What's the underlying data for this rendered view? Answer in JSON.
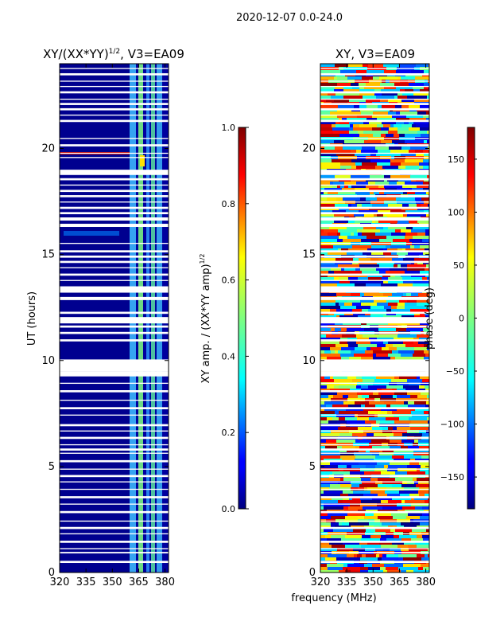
{
  "figure": {
    "suptitle": "2020-12-07 0.0-24.0",
    "shared_xlabel": "frequency (MHz)"
  },
  "chart_data": [
    {
      "type": "heatmap",
      "title": "XY/(XX*YY)",
      "title_sup": "1/2",
      "title_suffix": ", V3=EA09",
      "xlabel": "",
      "ylabel": "UT (hours)",
      "xlim": [
        320,
        382
      ],
      "ylim": [
        0,
        24
      ],
      "xticks": [
        320,
        335,
        350,
        365,
        380
      ],
      "yticks": [
        0,
        5,
        10,
        15,
        20
      ],
      "colormap": "jet",
      "colorbar": {
        "label": "XY amp. / (XX*YY amp)",
        "label_sup": "1/2",
        "range": [
          0.0,
          1.0
        ],
        "ticks": [
          0.0,
          0.2,
          0.4,
          0.6,
          0.8,
          1.0
        ],
        "tick_labels": [
          "0.0",
          "0.2",
          "0.4",
          "0.6",
          "0.8",
          "1.0"
        ]
      },
      "flagged_ut_ranges": [
        [
          0.45,
          0.55
        ],
        [
          0.9,
          0.97
        ],
        [
          1.1,
          1.15
        ],
        [
          1.4,
          1.5
        ],
        [
          1.8,
          1.85
        ],
        [
          2.05,
          2.15
        ],
        [
          2.4,
          2.45
        ],
        [
          2.8,
          2.9
        ],
        [
          3.2,
          3.25
        ],
        [
          3.5,
          3.6
        ],
        [
          3.9,
          3.95
        ],
        [
          4.25,
          4.3
        ],
        [
          4.5,
          4.6
        ],
        [
          4.85,
          4.9
        ],
        [
          5.2,
          5.3
        ],
        [
          5.6,
          5.65
        ],
        [
          5.75,
          5.85
        ],
        [
          6.0,
          6.05
        ],
        [
          6.3,
          6.4
        ],
        [
          6.65,
          6.7
        ],
        [
          6.9,
          7.0
        ],
        [
          7.4,
          7.45
        ],
        [
          7.7,
          7.8
        ],
        [
          8.1,
          8.15
        ],
        [
          8.5,
          8.6
        ],
        [
          8.9,
          8.95
        ],
        [
          9.25,
          9.5
        ],
        [
          9.5,
          10.05
        ],
        [
          10.9,
          11.0
        ],
        [
          11.25,
          11.35
        ],
        [
          11.55,
          11.65
        ],
        [
          11.75,
          12.05
        ],
        [
          12.2,
          12.3
        ],
        [
          12.85,
          13.0
        ],
        [
          13.2,
          13.5
        ],
        [
          13.75,
          13.8
        ],
        [
          14.0,
          14.1
        ],
        [
          14.35,
          14.4
        ],
        [
          14.6,
          14.7
        ],
        [
          14.85,
          14.95
        ],
        [
          15.1,
          15.2
        ],
        [
          15.5,
          15.55
        ],
        [
          16.3,
          16.45
        ],
        [
          16.6,
          16.75
        ],
        [
          16.9,
          17.0
        ],
        [
          17.15,
          17.25
        ],
        [
          17.45,
          17.5
        ],
        [
          17.7,
          17.8
        ],
        [
          17.95,
          18.05
        ],
        [
          18.25,
          18.3
        ],
        [
          18.5,
          18.6
        ],
        [
          18.75,
          19.0
        ],
        [
          19.55,
          19.6
        ],
        [
          19.75,
          19.8
        ],
        [
          20.1,
          20.2
        ],
        [
          20.45,
          20.5
        ],
        [
          21.25,
          21.35
        ],
        [
          21.55,
          21.6
        ],
        [
          21.8,
          21.9
        ],
        [
          22.05,
          22.15
        ],
        [
          22.3,
          22.35
        ],
        [
          22.6,
          22.7
        ],
        [
          22.9,
          22.95
        ],
        [
          23.15,
          23.2
        ],
        [
          23.45,
          23.55
        ],
        [
          23.75,
          23.8
        ]
      ]
    },
    {
      "type": "heatmap",
      "title": "XY, V3=EA09",
      "xlabel": "frequency (MHz)",
      "ylabel": "",
      "xlim": [
        320,
        382
      ],
      "ylim": [
        0,
        24
      ],
      "xticks": [
        320,
        335,
        350,
        365,
        380
      ],
      "yticks": [
        0,
        5,
        10,
        15,
        20
      ],
      "colormap": "jet",
      "colorbar": {
        "label": "phase (deg)",
        "range": [
          -180,
          180
        ],
        "ticks": [
          -150,
          -100,
          -50,
          0,
          50,
          100,
          150
        ],
        "tick_labels": [
          "−150",
          "−100",
          "−50",
          "0",
          "50",
          "100",
          "150"
        ]
      },
      "flagged_ut_ranges": [
        [
          0.45,
          0.55
        ],
        [
          0.9,
          0.97
        ],
        [
          1.1,
          1.15
        ],
        [
          1.4,
          1.5
        ],
        [
          1.8,
          1.85
        ],
        [
          2.05,
          2.15
        ],
        [
          2.4,
          2.45
        ],
        [
          2.8,
          2.9
        ],
        [
          3.2,
          3.25
        ],
        [
          3.5,
          3.6
        ],
        [
          3.9,
          3.95
        ],
        [
          4.25,
          4.3
        ],
        [
          4.5,
          4.6
        ],
        [
          4.85,
          4.9
        ],
        [
          5.2,
          5.3
        ],
        [
          5.6,
          5.65
        ],
        [
          5.75,
          5.85
        ],
        [
          6.0,
          6.05
        ],
        [
          6.3,
          6.4
        ],
        [
          6.65,
          6.7
        ],
        [
          6.9,
          7.0
        ],
        [
          7.4,
          7.45
        ],
        [
          7.7,
          7.8
        ],
        [
          8.1,
          8.15
        ],
        [
          8.5,
          8.6
        ],
        [
          8.9,
          8.95
        ],
        [
          9.25,
          9.5
        ],
        [
          9.5,
          10.05
        ],
        [
          10.9,
          11.0
        ],
        [
          11.25,
          11.35
        ],
        [
          11.55,
          11.65
        ],
        [
          11.75,
          12.05
        ],
        [
          12.2,
          12.3
        ],
        [
          12.85,
          13.0
        ],
        [
          13.2,
          13.5
        ],
        [
          13.75,
          13.8
        ],
        [
          14.0,
          14.1
        ],
        [
          14.35,
          14.4
        ],
        [
          14.6,
          14.7
        ],
        [
          14.85,
          14.95
        ],
        [
          15.1,
          15.2
        ],
        [
          15.5,
          15.55
        ],
        [
          16.3,
          16.45
        ],
        [
          16.6,
          16.75
        ],
        [
          16.9,
          17.0
        ],
        [
          17.15,
          17.25
        ],
        [
          17.45,
          17.5
        ],
        [
          17.7,
          17.8
        ],
        [
          17.95,
          18.05
        ],
        [
          18.25,
          18.3
        ],
        [
          18.5,
          18.6
        ],
        [
          18.75,
          19.0
        ],
        [
          19.55,
          19.6
        ],
        [
          19.75,
          19.8
        ],
        [
          20.1,
          20.2
        ],
        [
          20.45,
          20.5
        ],
        [
          21.25,
          21.35
        ],
        [
          21.55,
          21.6
        ],
        [
          21.8,
          21.9
        ],
        [
          22.05,
          22.15
        ],
        [
          22.3,
          22.35
        ],
        [
          22.6,
          22.7
        ],
        [
          22.9,
          22.95
        ],
        [
          23.15,
          23.2
        ],
        [
          23.45,
          23.55
        ],
        [
          23.75,
          23.8
        ]
      ]
    }
  ]
}
